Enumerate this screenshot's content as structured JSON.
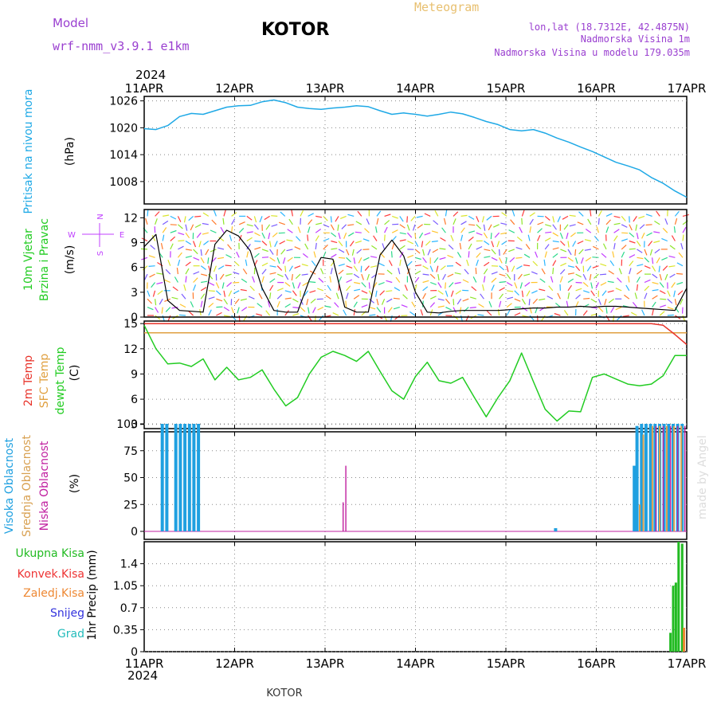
{
  "header": {
    "model_label": "Model",
    "model_name": "wrf-nmm_v3.9.1  e1km",
    "station": "KOTOR",
    "meteogram": "Meteogram",
    "lonlat": "lon,lat (18.7312E, 42.4875N)",
    "elevation": "Nadmorska Visina 1m",
    "model_elevation": "Nadmorska Visina u modelu 179.035m",
    "footer_station": "KOTOR",
    "credit": "made by Angel"
  },
  "colors": {
    "pressure": "#1fa9e6",
    "temp2m": "#e8332a",
    "sfc_temp": "#e0a040",
    "dewpt": "#22cc22",
    "high_cloud": "#1fa0e0",
    "mid_cloud": "#d8a050",
    "low_cloud": "#c020a0",
    "precip_total": "#22bb22",
    "precip_conv": "#ee3333",
    "precip_freeze": "#ee8833",
    "snow": "#3333dd",
    "grad": "#22bbbb",
    "header_purple": "#9a3fd0",
    "meteogram_label": "#e8c070",
    "wind_compass": "#c040ff"
  },
  "chart_data": [
    {
      "type": "line",
      "panel": "pressure",
      "year": "2024",
      "x_ticks": [
        "11APR",
        "12APR",
        "13APR",
        "14APR",
        "15APR",
        "16APR",
        "17APR"
      ],
      "ylabel_left": "Pritisak na nivou mora",
      "ylabel_unit": "(hPa)",
      "y_ticks": [
        "1008",
        "1014",
        "1020",
        "1026"
      ],
      "ylim": [
        1003,
        1027
      ],
      "grid": true,
      "series": [
        {
          "values": [
            1019.8,
            1019.6,
            1020.5,
            1022.5,
            1023.2,
            1023.0,
            1023.8,
            1024.6,
            1024.9,
            1025.0,
            1025.8,
            1026.2,
            1025.6,
            1024.6,
            1024.3,
            1024.1,
            1024.4,
            1024.6,
            1024.9,
            1024.7,
            1023.8,
            1023.0,
            1023.3,
            1023.0,
            1022.6,
            1023.0,
            1023.5,
            1023.1,
            1022.3,
            1021.4,
            1020.7,
            1019.6,
            1019.3,
            1019.6,
            1018.8,
            1017.7,
            1016.8,
            1015.7,
            1014.7,
            1013.5,
            1012.3,
            1011.5,
            1010.6,
            1008.9,
            1007.6,
            1005.9,
            1004.5
          ]
        }
      ]
    },
    {
      "type": "line",
      "panel": "wind",
      "ylabel_left_1": "10m Vjetar",
      "ylabel_left_2": "Brzina i Pravac",
      "ylabel_unit": "(m/s)",
      "y_ticks": [
        "0",
        "3",
        "6",
        "9",
        "12"
      ],
      "ylim": [
        0,
        13
      ],
      "compass": {
        "north": "N",
        "west": "W",
        "east": "E",
        "south": "S"
      },
      "series": [
        {
          "name_color": "#000000",
          "values": [
            8.5,
            10,
            2,
            0.8,
            0.7,
            0.6,
            8.8,
            10.5,
            9.8,
            8.0,
            3.5,
            0.8,
            0.6,
            0.6,
            4.5,
            7.2,
            7.0,
            1.2,
            0.6,
            0.6,
            7.5,
            9.3,
            7.4,
            3.0,
            0.6,
            0.5,
            0.7,
            0.8,
            0.8,
            0.8,
            0.8,
            0.9,
            1.0,
            1.1,
            1.1,
            1.2,
            1.2,
            1.3,
            1.2,
            1.3,
            1.3,
            1.2,
            1.1,
            1.0,
            0.9,
            0.8,
            3.5
          ]
        }
      ]
    },
    {
      "type": "line",
      "panel": "temperature",
      "ylabel_left_1": "2m Temp",
      "ylabel_left_2": "SFC Temp",
      "ylabel_left_3": "dewpt Temp",
      "ylabel_unit": "(C)",
      "y_ticks": [
        "3",
        "6",
        "9",
        "12",
        "15"
      ],
      "ylim": [
        2.5,
        15.3
      ],
      "series": [
        {
          "name": "2m Temp",
          "values": [
            15.0,
            15.0,
            15.0,
            15.0,
            15.0,
            15.0,
            15.0,
            15.0,
            15.0,
            15.0,
            15.0,
            15.0,
            15.0,
            15.0,
            15.0,
            15.0,
            15.0,
            15.0,
            15.0,
            15.0,
            15.0,
            15.0,
            15.0,
            15.0,
            15.0,
            15.0,
            15.0,
            15.0,
            15.0,
            15.0,
            15.0,
            15.0,
            15.0,
            15.0,
            15.0,
            15.0,
            15.0,
            15.0,
            15.0,
            15.0,
            15.0,
            15.0,
            15.0,
            15.0,
            14.8,
            13.7,
            12.5
          ]
        },
        {
          "name": "SFC Temp",
          "values": [
            13.9,
            13.9,
            13.9,
            13.9,
            13.9,
            13.9,
            13.9,
            13.9,
            13.9,
            13.9,
            13.9,
            13.9,
            13.9,
            13.9,
            13.9,
            13.9,
            13.9,
            13.9,
            13.9,
            13.9,
            13.9,
            13.9,
            13.9,
            13.9,
            13.9,
            13.9,
            13.9,
            13.9,
            13.9,
            13.9,
            13.9,
            13.9,
            13.9,
            13.9,
            13.9,
            13.9,
            13.9,
            13.9,
            13.9,
            13.9,
            13.9,
            13.9,
            13.9,
            13.9,
            13.9,
            13.9,
            13.9
          ]
        },
        {
          "name": "dewpt Temp",
          "values": [
            14.8,
            12.0,
            10.2,
            10.3,
            9.9,
            10.8,
            8.3,
            9.8,
            8.3,
            8.6,
            9.5,
            7.2,
            5.2,
            6.2,
            9.0,
            11.0,
            11.7,
            11.2,
            10.5,
            11.7,
            9.3,
            7.0,
            6.0,
            8.7,
            10.4,
            8.2,
            7.9,
            8.6,
            6.2,
            3.9,
            6.2,
            8.2,
            11.5,
            8.1,
            4.8,
            3.4,
            4.6,
            4.5,
            8.6,
            9.0,
            8.4,
            7.8,
            7.6,
            7.8,
            8.8,
            11.2,
            11.2
          ]
        }
      ]
    },
    {
      "type": "bar",
      "panel": "cloud",
      "ylabel_left_1": "Visoka Oblacnost",
      "ylabel_left_2": "Srednja Oblacnost",
      "ylabel_left_3": "Niska Oblacnost",
      "ylabel_unit": "(%)",
      "y_ticks": [
        "0",
        "25",
        "50",
        "75",
        "100"
      ],
      "ylim": [
        0,
        100
      ],
      "series": [
        {
          "name": "Visoka Oblacnost",
          "points": [
            [
              0.2,
              100
            ],
            [
              0.25,
              100
            ],
            [
              0.35,
              100
            ],
            [
              0.4,
              100
            ],
            [
              0.45,
              100
            ],
            [
              0.5,
              100
            ],
            [
              0.55,
              100
            ],
            [
              0.6,
              100
            ],
            [
              4.55,
              3
            ],
            [
              5.42,
              61
            ],
            [
              5.45,
              98
            ],
            [
              5.5,
              100
            ],
            [
              5.55,
              100
            ],
            [
              5.6,
              100
            ],
            [
              5.65,
              100
            ],
            [
              5.7,
              100
            ],
            [
              5.75,
              100
            ],
            [
              5.8,
              100
            ],
            [
              5.85,
              100
            ],
            [
              5.9,
              100
            ],
            [
              5.95,
              100
            ]
          ]
        },
        {
          "name": "Srednja Oblacnost",
          "points": [
            [
              5.48,
              25
            ],
            [
              5.52,
              90
            ],
            [
              5.62,
              98
            ],
            [
              5.7,
              98
            ],
            [
              5.78,
              98
            ],
            [
              5.86,
              98
            ],
            [
              5.94,
              98
            ]
          ]
        },
        {
          "name": "Niska Oblacnost",
          "points": [
            [
              2.2,
              27
            ],
            [
              2.23,
              61
            ],
            [
              5.66,
              98
            ],
            [
              5.74,
              98
            ],
            [
              5.82,
              98
            ],
            [
              5.9,
              98
            ],
            [
              5.98,
              98
            ]
          ]
        }
      ]
    },
    {
      "type": "bar",
      "panel": "precip",
      "legend": [
        "Ukupna Kisa",
        "Konvek.Kisa",
        "Zaledj.Kisa",
        "Snijeg",
        "Grad"
      ],
      "ylabel_unit": "1hr Precip (mm)",
      "y_ticks": [
        "0",
        "0.35",
        "0.7",
        "1.05",
        "1.4"
      ],
      "ylim": [
        0,
        1.75
      ],
      "series": [
        {
          "name": "Ukupna Kisa",
          "points": [
            [
              5.82,
              0.3
            ],
            [
              5.85,
              1.05
            ],
            [
              5.88,
              1.1
            ],
            [
              5.91,
              1.75
            ],
            [
              5.95,
              1.72
            ]
          ]
        },
        {
          "name": "Zaledj.Kisa",
          "points": [
            [
              5.97,
              0.38
            ]
          ]
        }
      ]
    }
  ]
}
